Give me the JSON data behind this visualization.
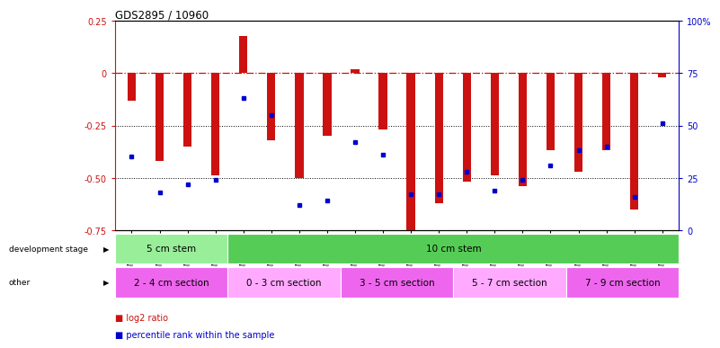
{
  "title": "GDS2895 / 10960",
  "samples": [
    "GSM35570",
    "GSM35571",
    "GSM35721",
    "GSM35725",
    "GSM35565",
    "GSM35567",
    "GSM35568",
    "GSM35569",
    "GSM35726",
    "GSM35727",
    "GSM35728",
    "GSM35729",
    "GSM35978",
    "GSM36004",
    "GSM36011",
    "GSM36012",
    "GSM36013",
    "GSM36014",
    "GSM36015",
    "GSM36016"
  ],
  "log2_ratio": [
    -0.13,
    -0.42,
    -0.35,
    -0.49,
    0.18,
    -0.32,
    -0.5,
    -0.3,
    0.02,
    -0.27,
    -0.75,
    -0.62,
    -0.52,
    -0.49,
    -0.54,
    -0.37,
    -0.47,
    -0.37,
    -0.65,
    -0.02
  ],
  "percentile_rank": [
    35,
    18,
    22,
    24,
    63,
    55,
    12,
    14,
    42,
    36,
    17,
    17,
    28,
    19,
    24,
    31,
    38,
    40,
    16,
    51
  ],
  "ylim_left": [
    -0.75,
    0.25
  ],
  "ylim_right": [
    0,
    100
  ],
  "bar_color": "#cc1111",
  "dot_color": "#0000cc",
  "dev_stage_groups": [
    {
      "label": "5 cm stem",
      "start": 0,
      "end": 4,
      "color": "#99ee99"
    },
    {
      "label": "10 cm stem",
      "start": 4,
      "end": 20,
      "color": "#55cc55"
    }
  ],
  "other_groups": [
    {
      "label": "2 - 4 cm section",
      "start": 0,
      "end": 4,
      "color": "#ee66ee"
    },
    {
      "label": "0 - 3 cm section",
      "start": 4,
      "end": 8,
      "color": "#ffaaff"
    },
    {
      "label": "3 - 5 cm section",
      "start": 8,
      "end": 12,
      "color": "#ee66ee"
    },
    {
      "label": "5 - 7 cm section",
      "start": 12,
      "end": 16,
      "color": "#ffaaff"
    },
    {
      "label": "7 - 9 cm section",
      "start": 16,
      "end": 20,
      "color": "#ee66ee"
    }
  ],
  "legend_items": [
    {
      "label": "log2 ratio",
      "color": "#cc1111"
    },
    {
      "label": "percentile rank within the sample",
      "color": "#0000cc"
    }
  ],
  "dotted_lines": [
    -0.25,
    -0.5
  ],
  "right_yticks": [
    0,
    25,
    50,
    75,
    100
  ],
  "right_yticklabels": [
    "0",
    "25",
    "50",
    "75",
    "100%"
  ],
  "left_yticks": [
    0.25,
    0.0,
    -0.25,
    -0.5,
    -0.75
  ],
  "left_yticklabels": [
    "0.25",
    "0",
    "-0.25",
    "-0.50",
    "-0.75"
  ]
}
